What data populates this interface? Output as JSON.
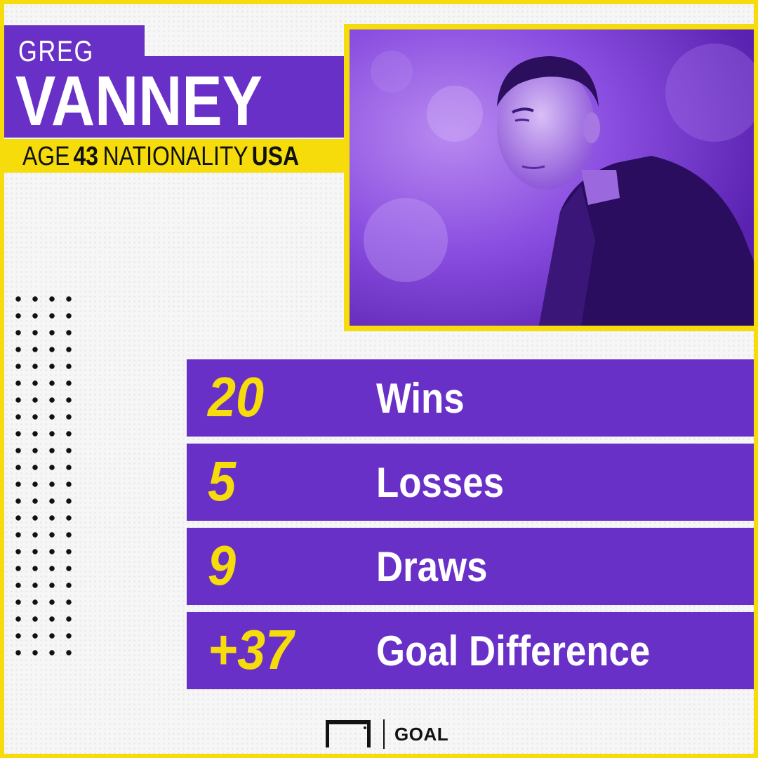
{
  "profile": {
    "first_name": "GREG",
    "last_name": "VANNEY",
    "age_label": "AGE",
    "age_value": "43",
    "nationality_label": "NATIONALITY",
    "nationality_value": "USA"
  },
  "stats": [
    {
      "value": "20",
      "label": "Wins"
    },
    {
      "value": "5",
      "label": "Losses"
    },
    {
      "value": "9",
      "label": "Draws"
    },
    {
      "value": "+37",
      "label": "Goal Difference"
    }
  ],
  "brand": {
    "logo_text": "GOAL",
    "icon": "goal-frame-icon"
  },
  "colors": {
    "purple": "#6930c8",
    "yellow": "#f5dc0a",
    "white": "#ffffff"
  }
}
